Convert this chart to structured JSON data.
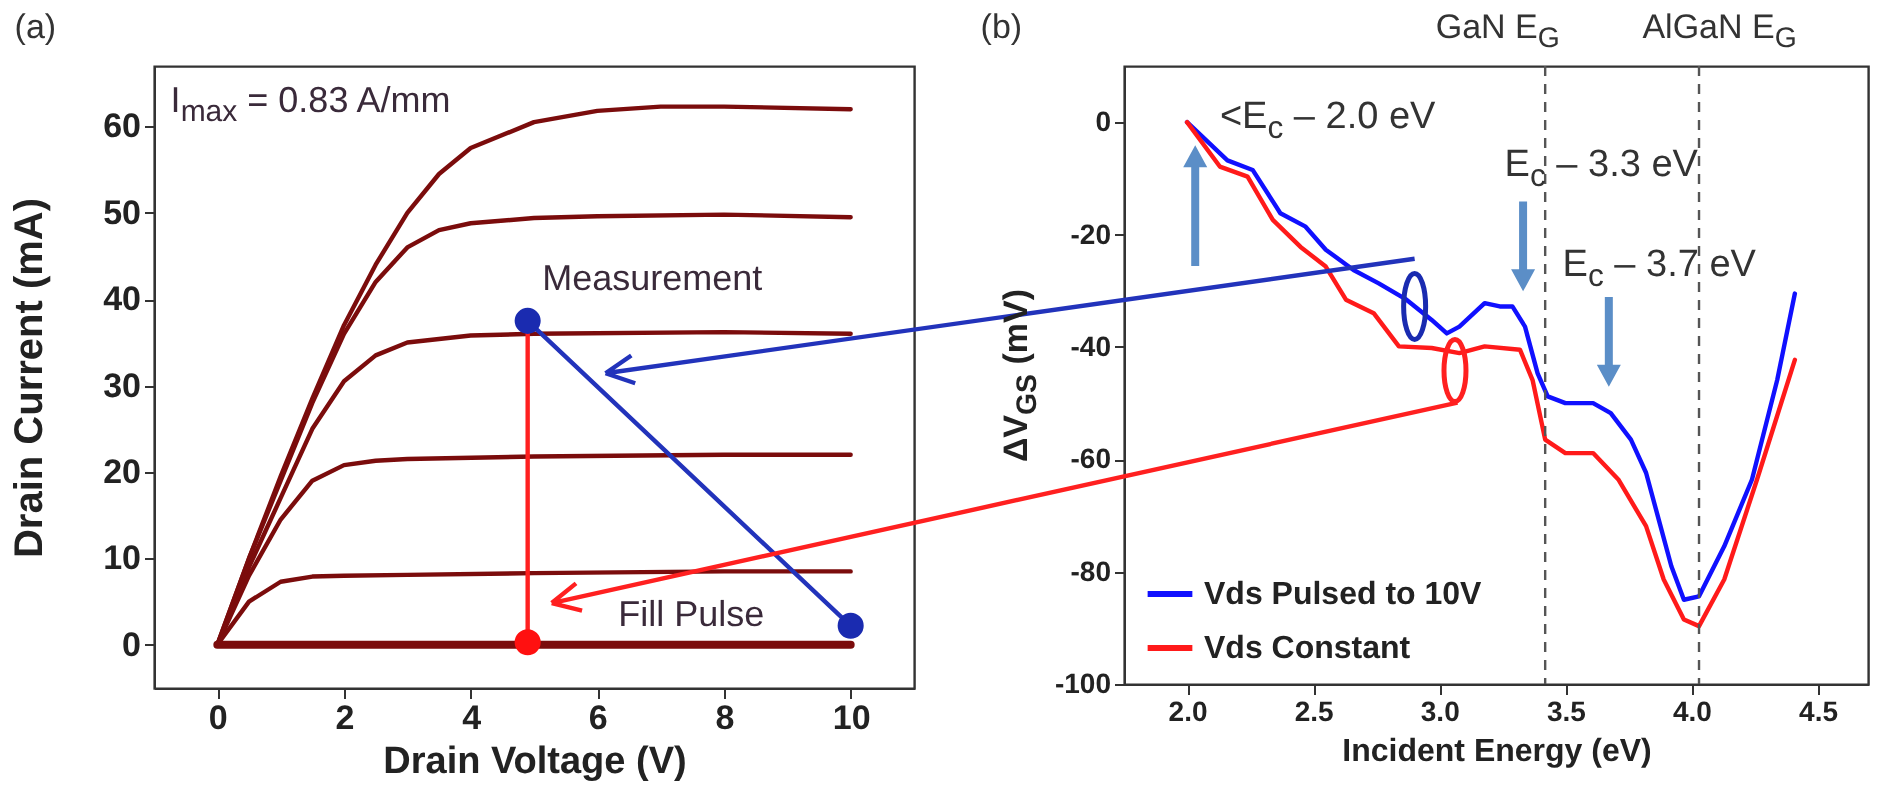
{
  "chart_data": [
    {
      "type": "line",
      "title": "(a)",
      "xlabel": "Drain Voltage (V)",
      "ylabel": "Drain Current (mA)",
      "xlim": [
        -1,
        11
      ],
      "ylim": [
        -5,
        67
      ],
      "xticks": [
        0,
        2,
        4,
        6,
        8,
        10
      ],
      "yticks": [
        0,
        10,
        20,
        30,
        40,
        50,
        60
      ],
      "grid": false,
      "annotations": [
        "I$_{max}$ = 0.83 A/mm",
        {
          "text": "Measurement",
          "x": 4.9,
          "y": 37.5
        },
        {
          "text": "Fill Pulse",
          "x": 10,
          "y": 2.2
        }
      ],
      "series": [
        {
          "color": "#7b0c0c",
          "x": [
            0,
            0.5,
            1,
            1.5,
            2,
            2.5,
            3,
            3.5,
            4,
            5,
            6,
            7,
            8,
            10
          ],
          "values": [
            0,
            10,
            19.5,
            28.5,
            37,
            44,
            50,
            54.5,
            57.5,
            60.5,
            61.8,
            62.3,
            62.3,
            62
          ]
        },
        {
          "color": "#7b0c0c",
          "x": [
            0,
            0.5,
            1,
            1.5,
            2,
            2.5,
            3,
            3.5,
            4,
            5,
            6,
            8,
            10
          ],
          "values": [
            0,
            10,
            19,
            28,
            36,
            42,
            46,
            48,
            48.8,
            49.4,
            49.6,
            49.8,
            49.5
          ]
        },
        {
          "color": "#7b0c0c",
          "x": [
            0,
            0.5,
            1,
            1.5,
            2,
            2.5,
            3,
            4,
            5,
            8,
            10
          ],
          "values": [
            0,
            9,
            17,
            25,
            30.5,
            33.5,
            35,
            35.8,
            36,
            36.2,
            36
          ]
        },
        {
          "color": "#7b0c0c",
          "x": [
            0,
            0.5,
            1,
            1.5,
            2,
            2.5,
            3,
            5,
            8,
            10
          ],
          "values": [
            0,
            8,
            14.5,
            19,
            20.8,
            21.3,
            21.5,
            21.8,
            22,
            22
          ]
        },
        {
          "color": "#7b0c0c",
          "x": [
            0,
            0.5,
            1,
            1.5,
            2,
            3,
            5,
            8,
            10
          ],
          "values": [
            0,
            5,
            7.3,
            7.9,
            8,
            8.1,
            8.3,
            8.5,
            8.5
          ]
        },
        {
          "color": "#7b0c0c",
          "x": [
            0,
            10
          ],
          "values": [
            0,
            0
          ]
        },
        {
          "type": "line",
          "color": "#2233bb",
          "x": [
            4.9,
            10
          ],
          "values": [
            37.5,
            2.2
          ]
        },
        {
          "type": "line",
          "color": "#ff2020",
          "x": [
            4.9,
            4.9
          ],
          "values": [
            36,
            0.3
          ]
        },
        {
          "type": "scatter",
          "color": "#1a2bb0",
          "x": [
            4.9,
            10
          ],
          "values": [
            37.5,
            2.2
          ]
        },
        {
          "type": "scatter",
          "color": "#ff1010",
          "x": [
            4.9
          ],
          "values": [
            0.3
          ]
        }
      ]
    },
    {
      "type": "line",
      "title": "(b)",
      "xlabel": "Incident Energy (eV)",
      "ylabel": "ΔV$_{GS}$ (mV)",
      "xlim": [
        1.75,
        4.7
      ],
      "ylim": [
        -100,
        10
      ],
      "xticks": [
        {
          "value": 2,
          "label": "2.0"
        },
        2.5,
        {
          "value": 3,
          "label": "3.0"
        },
        3.5,
        {
          "value": 4,
          "label": "4.0"
        },
        4.5
      ],
      "yticks": [
        0,
        -20,
        -40,
        -60,
        -80,
        -100
      ],
      "grid": false,
      "legend": "bottom left",
      "ref_lines": [
        {
          "axis": "x",
          "value": 3.42,
          "label": "GaN E$_{G}$",
          "line_style": "dashed",
          "color": "#555555"
        },
        {
          "axis": "x",
          "value": 4.03,
          "label": "AlGaN E$_{G}$",
          "line_style": "dashed",
          "color": "#555555"
        }
      ],
      "annotations": [
        {
          "text": "<E$_{c}$ – 2.0 eV",
          "x": 2.0,
          "y": 0
        },
        "E$_{c}$ – 3.3 eV",
        "E$_{c}$ – 3.7 eV"
      ],
      "series": [
        {
          "name": "Vds Pulsed to 10V",
          "color": "#1010ff",
          "x": [
            2.0,
            2.16,
            2.26,
            2.37,
            2.47,
            2.55,
            2.66,
            2.76,
            2.87,
            2.97,
            3.03,
            3.08,
            3.18,
            3.24,
            3.29,
            3.34,
            3.39,
            3.43,
            3.5,
            3.61,
            3.68,
            3.76,
            3.82,
            3.87,
            3.92,
            3.97,
            4.03,
            4.13,
            4.24,
            4.34,
            4.41
          ],
          "values": [
            0,
            -6.8,
            -8.5,
            -16.2,
            -18.6,
            -22.7,
            -26.3,
            -28.7,
            -31.6,
            -35.2,
            -37.6,
            -36.4,
            -32.2,
            -32.8,
            -32.8,
            -36.4,
            -44.7,
            -48.8,
            -50,
            -50,
            -51.8,
            -56.5,
            -62.4,
            -70.7,
            -79,
            -85,
            -84.4,
            -75.5,
            -63.6,
            -45.9,
            -30.5
          ]
        },
        {
          "name": "Vds Constant",
          "color": "#ff1a1a",
          "x": [
            2.0,
            2.13,
            2.24,
            2.34,
            2.45,
            2.55,
            2.63,
            2.74,
            2.84,
            2.97,
            3.08,
            3.18,
            3.32,
            3.37,
            3.42,
            3.5,
            3.61,
            3.71,
            3.82,
            3.89,
            3.97,
            4.03,
            4.13,
            4.26,
            4.41
          ],
          "values": [
            0,
            -7.9,
            -9.7,
            -17.4,
            -22.2,
            -25.7,
            -31.6,
            -34,
            -39.9,
            -40.2,
            -41.1,
            -39.9,
            -40.5,
            -45.9,
            -56.5,
            -58.9,
            -58.9,
            -63.6,
            -71.9,
            -81.4,
            -88.5,
            -89.7,
            -81.4,
            -63.6,
            -42.3
          ]
        }
      ]
    }
  ]
}
